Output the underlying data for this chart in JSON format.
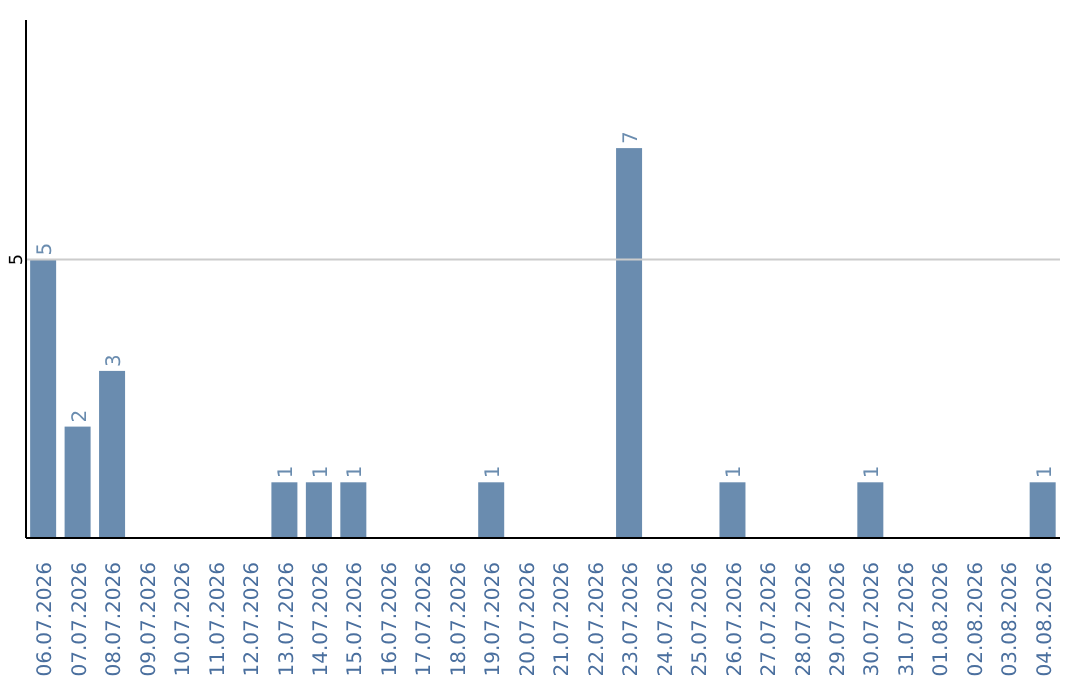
{
  "chart_data": {
    "type": "bar",
    "categories": [
      "06.07.2026",
      "07.07.2026",
      "08.07.2026",
      "09.07.2026",
      "10.07.2026",
      "11.07.2026",
      "12.07.2026",
      "13.07.2026",
      "14.07.2026",
      "15.07.2026",
      "16.07.2026",
      "17.07.2026",
      "18.07.2026",
      "19.07.2026",
      "20.07.2026",
      "21.07.2026",
      "22.07.2026",
      "23.07.2026",
      "24.07.2026",
      "25.07.2026",
      "26.07.2026",
      "27.07.2026",
      "28.07.2026",
      "29.07.2026",
      "30.07.2026",
      "31.07.2026",
      "01.08.2026",
      "02.08.2026",
      "03.08.2026",
      "04.08.2026"
    ],
    "values": [
      5,
      2,
      3,
      0,
      0,
      0,
      0,
      1,
      1,
      1,
      0,
      0,
      0,
      1,
      0,
      0,
      0,
      7,
      0,
      0,
      1,
      0,
      0,
      0,
      1,
      0,
      0,
      0,
      0,
      1
    ],
    "value_labels": [
      "5",
      "2",
      "3",
      null,
      null,
      null,
      null,
      "1",
      "1",
      "1",
      null,
      null,
      null,
      "1",
      null,
      null,
      null,
      "7",
      null,
      null,
      "1",
      null,
      null,
      null,
      "1",
      null,
      null,
      null,
      null,
      "1"
    ],
    "color": "#6a8caf",
    "ylim": [
      0,
      9.3
    ],
    "yticks": [
      5
    ],
    "grid": "y"
  }
}
